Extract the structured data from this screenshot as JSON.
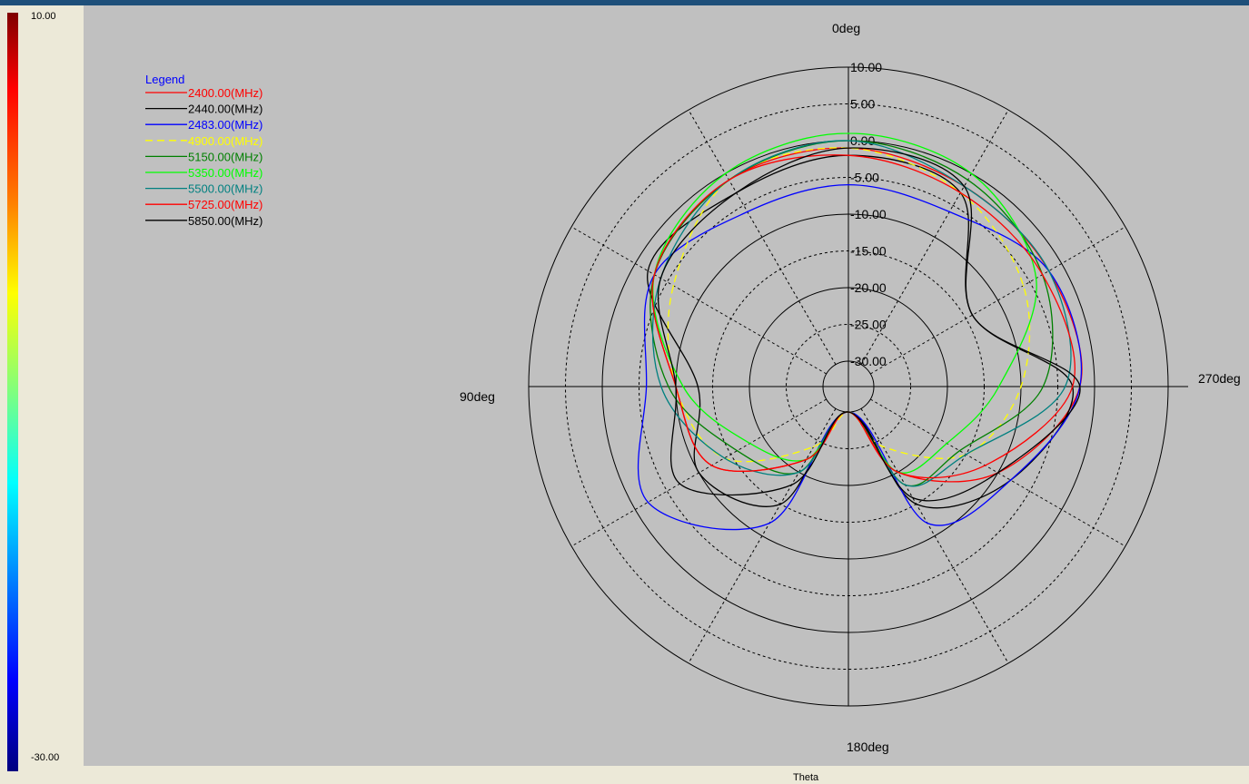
{
  "colorbar": {
    "max_label": "10.00",
    "min_label": "-30.00"
  },
  "footer": {
    "axis_label": "Theta"
  },
  "chart_data": {
    "type": "line",
    "subtype": "polar",
    "title": "",
    "angle_axis_label": "Theta",
    "angle_labels": [
      "0deg",
      "90deg",
      "180deg",
      "270deg"
    ],
    "angle_direction": "counterclockwise",
    "radial_range": [
      -30,
      10
    ],
    "radial_tick_labels": [
      "10.00",
      "5.00",
      "0.00",
      "-5.00",
      "-10.00",
      "-15.00",
      "-20.00",
      "-25.00",
      "-30.00"
    ],
    "radial_tick_values": [
      10,
      5,
      0,
      -5,
      -10,
      -15,
      -20,
      -25,
      -30
    ],
    "grid": true,
    "legend_title": "Legend",
    "legend_position": "top-left",
    "theta": [
      0,
      30,
      60,
      90,
      120,
      150,
      180,
      210,
      240,
      270,
      300,
      330
    ],
    "series": [
      {
        "name": "2400.00(MHz)",
        "color": "#ff0000",
        "dash": false,
        "values": [
          -1,
          -1,
          -3,
          -10,
          -12,
          -22,
          -30,
          -20,
          -10,
          -2,
          -2,
          -2
        ]
      },
      {
        "name": "2440.00(MHz)",
        "color": "#000000",
        "dash": false,
        "values": [
          -2,
          -3,
          -2,
          -13,
          -10,
          -15,
          -30,
          -15,
          -8,
          -3,
          -14,
          -3
        ]
      },
      {
        "name": "2483.00(MHz)",
        "color": "#0000ff",
        "dash": false,
        "values": [
          -6,
          -6,
          -3,
          -6,
          -2,
          -12,
          -30,
          -12,
          -8,
          -2,
          -2,
          -6
        ]
      },
      {
        "name": "4900.00(MHz)",
        "color": "#ffff00",
        "dash": true,
        "values": [
          -1,
          -1,
          -6,
          -10,
          -14,
          -24,
          -30,
          -24,
          -15,
          -10,
          -6,
          -3
        ]
      },
      {
        "name": "5150.00(MHz)",
        "color": "#008000",
        "dash": false,
        "values": [
          0,
          -1,
          -3,
          -9,
          -16,
          -20,
          -30,
          -18,
          -16,
          -7,
          -3,
          -1
        ]
      },
      {
        "name": "5350.00(MHz)",
        "color": "#00ff00",
        "dash": false,
        "values": [
          1,
          0,
          -3,
          -11,
          -18,
          -22,
          -30,
          -20,
          -18,
          -13,
          -4,
          0
        ]
      },
      {
        "name": "5500.00(MHz)",
        "color": "#008080",
        "dash": false,
        "values": [
          0,
          -1,
          -4,
          -8,
          -14,
          -20,
          -30,
          -18,
          -15,
          -4,
          -2,
          -2
        ]
      },
      {
        "name": "5725.00(MHz)",
        "color": "#ff0000",
        "dash": false,
        "values": [
          -2,
          -1,
          -3,
          -10,
          -12,
          -22,
          -30,
          -20,
          -12,
          -3,
          -3,
          -3
        ]
      },
      {
        "name": "5850.00(MHz)",
        "color": "#000000",
        "dash": false,
        "values": [
          -1,
          -3,
          -4,
          -10,
          -7,
          -18,
          -30,
          -16,
          -10,
          -2,
          -14,
          -2
        ]
      }
    ]
  }
}
